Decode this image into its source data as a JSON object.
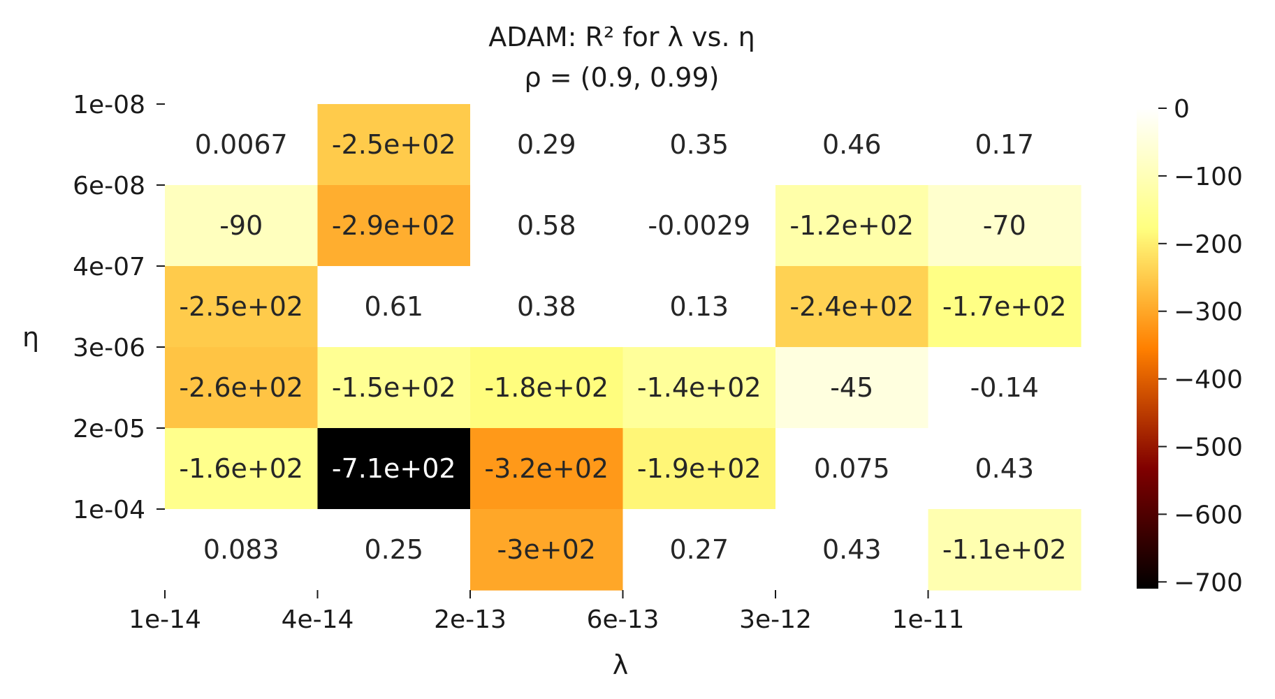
{
  "chart_data": {
    "type": "heatmap",
    "title": "ADAM: R² for λ vs. η",
    "subtitle": "ρ = (0.9, 0.99)",
    "xlabel": "λ",
    "ylabel": "η",
    "x_tick_labels": [
      "1e-14",
      "4e-14",
      "2e-13",
      "6e-13",
      "3e-12",
      "1e-11"
    ],
    "y_tick_labels": [
      "1e-08",
      "6e-08",
      "4e-07",
      "3e-06",
      "2e-05",
      "1e-04"
    ],
    "values": [
      [
        0.0067,
        -250,
        0.29,
        0.35,
        0.46,
        0.17
      ],
      [
        -90,
        -290,
        0.58,
        -0.0029,
        -120,
        -70
      ],
      [
        -250,
        0.61,
        0.38,
        0.13,
        -240,
        -170
      ],
      [
        -260,
        -150,
        -180,
        -140,
        -45,
        -0.14
      ],
      [
        -160,
        -710,
        -320,
        -190,
        0.075,
        0.43
      ],
      [
        0.083,
        0.25,
        -300,
        0.27,
        0.43,
        -110
      ]
    ],
    "annotations": [
      [
        "0.0067",
        "-2.5e+02",
        "0.29",
        "0.35",
        "0.46",
        "0.17"
      ],
      [
        "-90",
        "-2.9e+02",
        "0.58",
        "-0.0029",
        "-1.2e+02",
        "-70"
      ],
      [
        "-2.5e+02",
        "0.61",
        "0.38",
        "0.13",
        "-2.4e+02",
        "-1.7e+02"
      ],
      [
        "-2.6e+02",
        "-1.5e+02",
        "-1.8e+02",
        "-1.4e+02",
        "-45",
        "-0.14"
      ],
      [
        "-1.6e+02",
        "-7.1e+02",
        "-3.2e+02",
        "-1.9e+02",
        "0.075",
        "0.43"
      ],
      [
        "0.083",
        "0.25",
        "-3e+02",
        "0.27",
        "0.43",
        "-1.1e+02"
      ]
    ],
    "colormap": "afmhot",
    "vmin": -710,
    "vmax": 0,
    "colorbar_ticks": [
      0,
      -100,
      -200,
      -300,
      -400,
      -500,
      -600,
      -700
    ],
    "colorbar_tick_labels": [
      "0",
      "−100",
      "−200",
      "−300",
      "−400",
      "−500",
      "−600",
      "−700"
    ]
  }
}
